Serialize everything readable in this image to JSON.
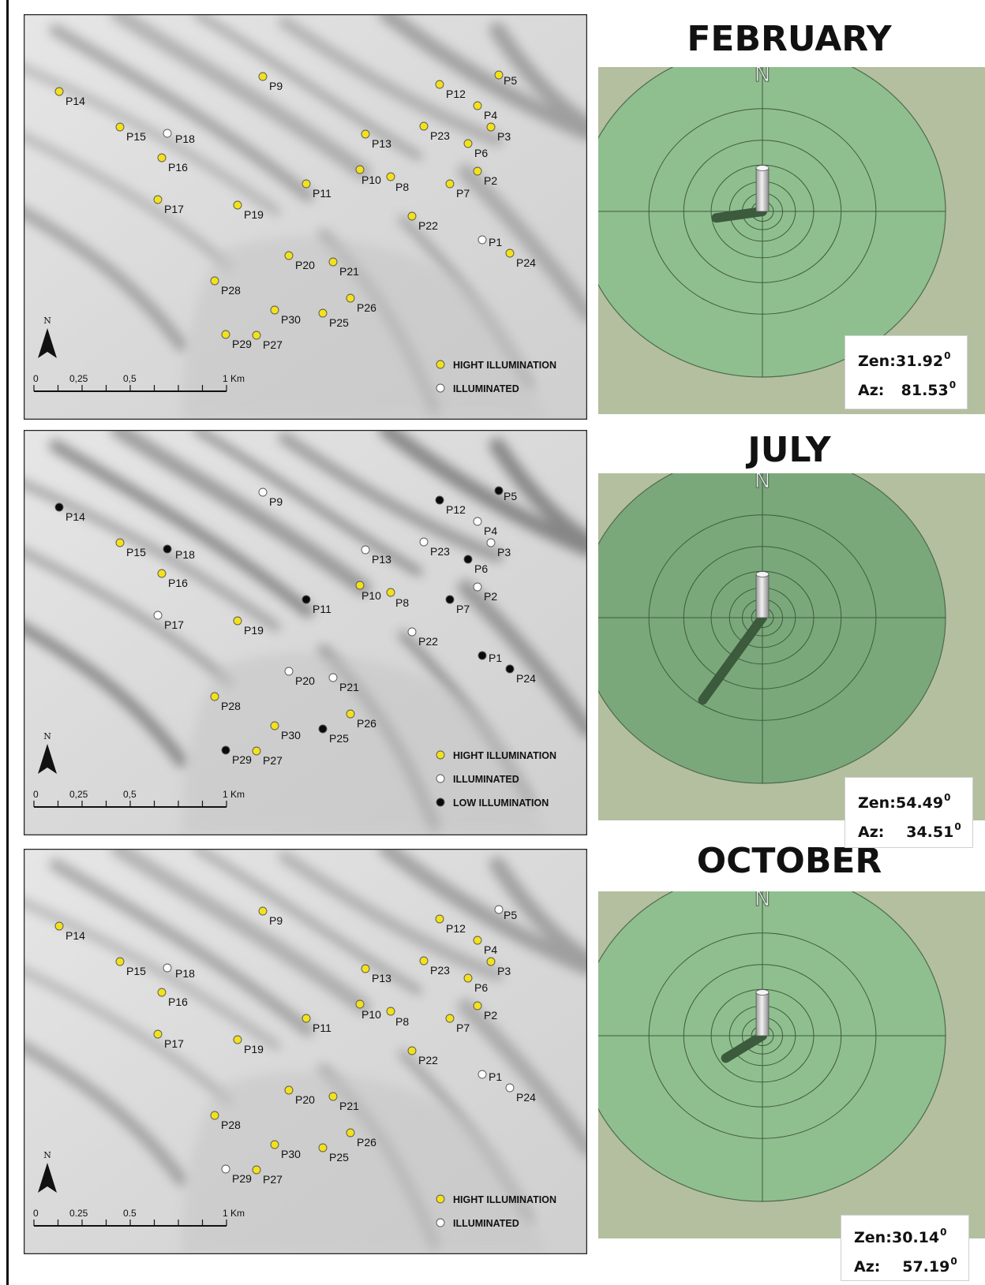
{
  "maps": [
    {
      "id": "february",
      "points": [
        {
          "label": "P1",
          "ill": "illuminated"
        },
        {
          "label": "P2",
          "ill": "high"
        },
        {
          "label": "P3",
          "ill": "high"
        },
        {
          "label": "P4",
          "ill": "high"
        },
        {
          "label": "P5",
          "ill": "high"
        },
        {
          "label": "P6",
          "ill": "high"
        },
        {
          "label": "P7",
          "ill": "high"
        },
        {
          "label": "P8",
          "ill": "high"
        },
        {
          "label": "P9",
          "ill": "high"
        },
        {
          "label": "P10",
          "ill": "high"
        },
        {
          "label": "P11",
          "ill": "high"
        },
        {
          "label": "P12",
          "ill": "high"
        },
        {
          "label": "P13",
          "ill": "high"
        },
        {
          "label": "P14",
          "ill": "high"
        },
        {
          "label": "P15",
          "ill": "high"
        },
        {
          "label": "P16",
          "ill": "high"
        },
        {
          "label": "P17",
          "ill": "high"
        },
        {
          "label": "P18",
          "ill": "illuminated"
        },
        {
          "label": "P19",
          "ill": "high"
        },
        {
          "label": "P20",
          "ill": "high"
        },
        {
          "label": "P21",
          "ill": "high"
        },
        {
          "label": "P22",
          "ill": "high"
        },
        {
          "label": "P23",
          "ill": "high"
        },
        {
          "label": "P24",
          "ill": "high"
        },
        {
          "label": "P25",
          "ill": "high"
        },
        {
          "label": "P26",
          "ill": "high"
        },
        {
          "label": "P27",
          "ill": "high"
        },
        {
          "label": "P28",
          "ill": "high"
        },
        {
          "label": "P29",
          "ill": "high"
        },
        {
          "label": "P30",
          "ill": "high"
        }
      ],
      "legend": [
        {
          "key": "high",
          "label": "HIGHT ILLUMINATION"
        },
        {
          "key": "illuminated",
          "label": "ILLUMINATED"
        }
      ],
      "scale_labels": [
        "0",
        "0,25",
        "0,5",
        "1 Km"
      ]
    },
    {
      "id": "july",
      "points": [
        {
          "label": "P1",
          "ill": "low"
        },
        {
          "label": "P2",
          "ill": "illuminated"
        },
        {
          "label": "P3",
          "ill": "illuminated"
        },
        {
          "label": "P4",
          "ill": "illuminated"
        },
        {
          "label": "P5",
          "ill": "low"
        },
        {
          "label": "P6",
          "ill": "low"
        },
        {
          "label": "P7",
          "ill": "low"
        },
        {
          "label": "P8",
          "ill": "high"
        },
        {
          "label": "P9",
          "ill": "illuminated"
        },
        {
          "label": "P10",
          "ill": "high"
        },
        {
          "label": "P11",
          "ill": "low"
        },
        {
          "label": "P12",
          "ill": "low"
        },
        {
          "label": "P13",
          "ill": "illuminated"
        },
        {
          "label": "P14",
          "ill": "low"
        },
        {
          "label": "P15",
          "ill": "high"
        },
        {
          "label": "P16",
          "ill": "high"
        },
        {
          "label": "P17",
          "ill": "illuminated"
        },
        {
          "label": "P18",
          "ill": "low"
        },
        {
          "label": "P19",
          "ill": "high"
        },
        {
          "label": "P20",
          "ill": "illuminated"
        },
        {
          "label": "P21",
          "ill": "illuminated"
        },
        {
          "label": "P22",
          "ill": "illuminated"
        },
        {
          "label": "P23",
          "ill": "illuminated"
        },
        {
          "label": "P24",
          "ill": "low"
        },
        {
          "label": "P25",
          "ill": "low"
        },
        {
          "label": "P26",
          "ill": "high"
        },
        {
          "label": "P27",
          "ill": "high"
        },
        {
          "label": "P28",
          "ill": "high"
        },
        {
          "label": "P29",
          "ill": "low"
        },
        {
          "label": "P30",
          "ill": "high"
        }
      ],
      "legend": [
        {
          "key": "high",
          "label": "HIGHT ILLUMINATION"
        },
        {
          "key": "illuminated",
          "label": "ILLUMINATED"
        },
        {
          "key": "low",
          "label": "LOW ILLUMINATION"
        }
      ],
      "scale_labels": [
        "0",
        "0,25",
        "0,5",
        "1 Km"
      ]
    },
    {
      "id": "october",
      "points": [
        {
          "label": "P1",
          "ill": "illuminated"
        },
        {
          "label": "P2",
          "ill": "high"
        },
        {
          "label": "P3",
          "ill": "high"
        },
        {
          "label": "P4",
          "ill": "high"
        },
        {
          "label": "P5",
          "ill": "illuminated"
        },
        {
          "label": "P6",
          "ill": "high"
        },
        {
          "label": "P7",
          "ill": "high"
        },
        {
          "label": "P8",
          "ill": "high"
        },
        {
          "label": "P9",
          "ill": "high"
        },
        {
          "label": "P10",
          "ill": "high"
        },
        {
          "label": "P11",
          "ill": "high"
        },
        {
          "label": "P12",
          "ill": "high"
        },
        {
          "label": "P13",
          "ill": "high"
        },
        {
          "label": "P14",
          "ill": "high"
        },
        {
          "label": "P15",
          "ill": "high"
        },
        {
          "label": "P16",
          "ill": "high"
        },
        {
          "label": "P17",
          "ill": "high"
        },
        {
          "label": "P18",
          "ill": "illuminated"
        },
        {
          "label": "P19",
          "ill": "high"
        },
        {
          "label": "P20",
          "ill": "high"
        },
        {
          "label": "P21",
          "ill": "high"
        },
        {
          "label": "P22",
          "ill": "high"
        },
        {
          "label": "P23",
          "ill": "high"
        },
        {
          "label": "P24",
          "ill": "illuminated"
        },
        {
          "label": "P25",
          "ill": "high"
        },
        {
          "label": "P26",
          "ill": "high"
        },
        {
          "label": "P27",
          "ill": "high"
        },
        {
          "label": "P28",
          "ill": "high"
        },
        {
          "label": "P29",
          "ill": "illuminated"
        },
        {
          "label": "P30",
          "ill": "high"
        }
      ],
      "legend": [
        {
          "key": "high",
          "label": "HIGHT ILLUMINATION"
        },
        {
          "key": "illuminated",
          "label": "ILLUMINATED"
        }
      ],
      "scale_labels": [
        "0",
        "0.25",
        "0.5",
        "1 Km"
      ]
    }
  ],
  "north_arrow_label": "N",
  "months": [
    {
      "title": "FEBRUARY",
      "dial_label": "N",
      "zen_label": "Zen:",
      "zen_value": "31.92",
      "zen_deg": 31.92,
      "az_label": "Az:",
      "az_value": "81.53",
      "az_deg": 81.53,
      "degree_mark": "0",
      "dial_color": "#8fbf8f"
    },
    {
      "title": "JULY",
      "dial_label": "N",
      "zen_label": "Zen:",
      "zen_value": "54.49",
      "zen_deg": 54.49,
      "az_label": "Az:",
      "az_value": "34.51",
      "az_deg": 34.51,
      "degree_mark": "0",
      "dial_color": "#7aa87a"
    },
    {
      "title": "OCTOBER",
      "dial_label": "N",
      "zen_label": "Zen:",
      "zen_value": "30.14",
      "zen_deg": 30.14,
      "az_label": "Az:",
      "az_value": "57.19",
      "az_deg": 57.19,
      "degree_mark": "0",
      "dial_color": "#8fbf8f"
    }
  ],
  "colors": {
    "high": "#f3e11b",
    "illuminated": "#ffffff",
    "low": "#0a0a0a",
    "dial_background": "#b3bf9f",
    "shadow": "#3c5a3c"
  }
}
